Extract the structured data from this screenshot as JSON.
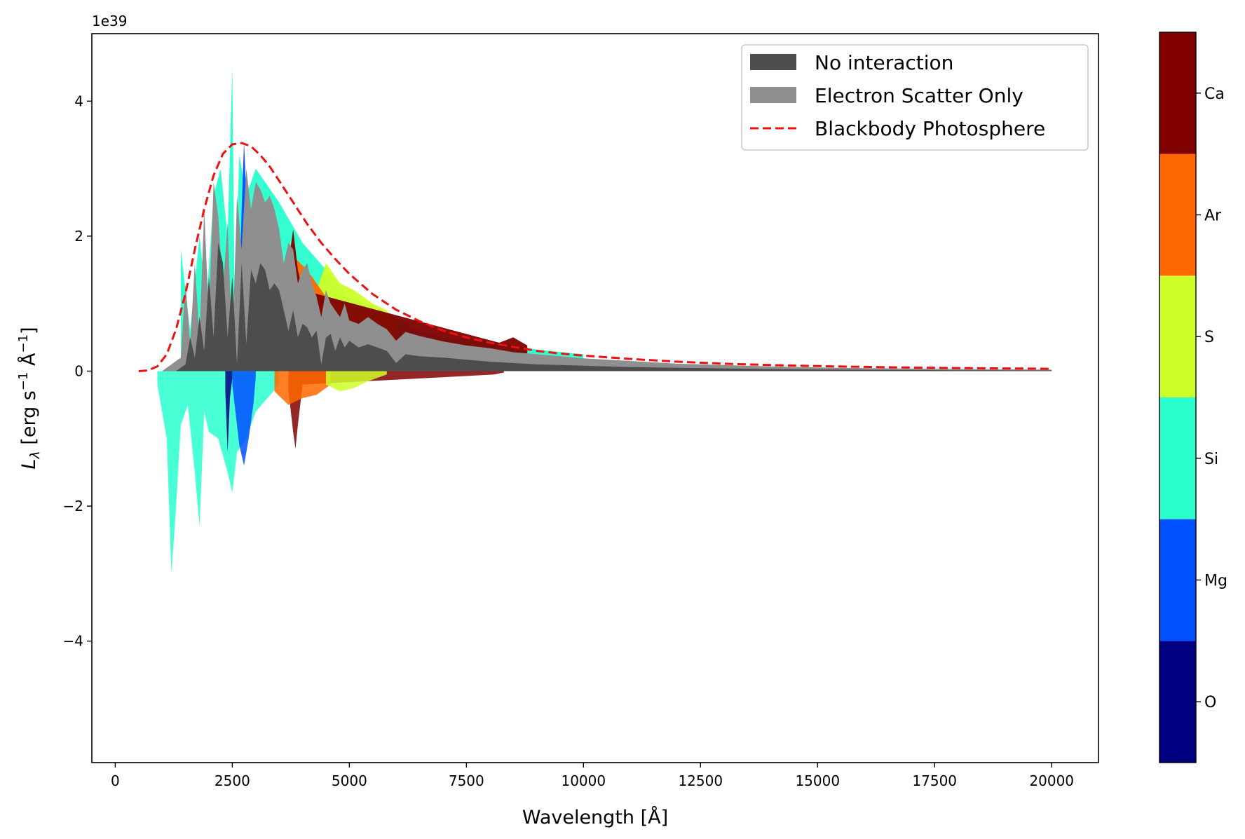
{
  "chart_data": {
    "type": "area",
    "title": "",
    "xlabel": "Wavelength [Å]",
    "ylabel": "L_λ [erg s⁻¹ Å⁻¹]",
    "ylabel_parts": {
      "l": "L",
      "sub": "λ",
      "rest1": " [erg s",
      "sup1": "−1",
      "mid": " Å",
      "sup2": "−1",
      "end": "]"
    },
    "y_offset_label": "1e39",
    "xlim": [
      -500,
      21000
    ],
    "ylim": [
      -5.8,
      5.0
    ],
    "x_ticks": [
      0,
      2500,
      5000,
      7500,
      10000,
      12500,
      15000,
      17500,
      20000
    ],
    "y_ticks": [
      -4,
      -2,
      0,
      2,
      4
    ],
    "y_tick_labels": [
      "−4",
      "−2",
      "0",
      "2",
      "4"
    ],
    "legend": {
      "position": "top-right",
      "entries": [
        {
          "label": "No interaction",
          "color": "#4d4d4d",
          "kind": "patch"
        },
        {
          "label": "Electron Scatter Only",
          "color": "#8f8f8f",
          "kind": "patch"
        },
        {
          "label": "Blackbody Photosphere",
          "color": "#ee1111",
          "kind": "dashed-line"
        }
      ]
    },
    "blackbody_photosphere": {
      "x": [
        500,
        700,
        900,
        1100,
        1300,
        1500,
        1700,
        1900,
        2100,
        2300,
        2500,
        2700,
        2900,
        3100,
        3300,
        3500,
        3800,
        4100,
        4400,
        4700,
        5000,
        5500,
        6000,
        6500,
        7000,
        7500,
        8000,
        8500,
        9000,
        9500,
        10000,
        11000,
        12000,
        13000,
        14000,
        15000,
        16000,
        17000,
        18000,
        19000,
        20000
      ],
      "y": [
        0.0,
        0.01,
        0.07,
        0.25,
        0.62,
        1.15,
        1.8,
        2.4,
        2.9,
        3.22,
        3.36,
        3.38,
        3.33,
        3.2,
        3.03,
        2.82,
        2.5,
        2.18,
        1.9,
        1.66,
        1.44,
        1.14,
        0.91,
        0.74,
        0.6,
        0.5,
        0.42,
        0.36,
        0.3,
        0.26,
        0.23,
        0.18,
        0.14,
        0.11,
        0.09,
        0.075,
        0.063,
        0.053,
        0.046,
        0.04,
        0.035
      ]
    },
    "electron_scatter_only": {
      "x": [
        1000,
        1400,
        1500,
        1600,
        1700,
        1800,
        1900,
        2000,
        2100,
        2200,
        2300,
        2400,
        2500,
        2600,
        2700,
        2800,
        2900,
        3000,
        3100,
        3200,
        3300,
        3400,
        3500,
        3600,
        3700,
        3800,
        3900,
        4000,
        4100,
        4200,
        4300,
        4400,
        4500,
        4600,
        4700,
        4800,
        4900,
        5000,
        5200,
        5400,
        5600,
        5800,
        6000,
        6200,
        6500,
        7000,
        7500,
        8000,
        8500,
        9000,
        9500,
        10000,
        11000,
        12000,
        13000,
        14000,
        15000,
        16000,
        17000,
        18000,
        19000,
        20000
      ],
      "y": [
        0.0,
        0.2,
        1.3,
        0.4,
        1.6,
        0.5,
        2.4,
        0.8,
        2.8,
        2.3,
        1.2,
        2.2,
        0.3,
        2.6,
        1.8,
        3.0,
        2.4,
        2.8,
        2.7,
        2.5,
        2.6,
        2.4,
        2.1,
        1.6,
        1.9,
        1.8,
        1.3,
        1.5,
        1.6,
        1.3,
        1.1,
        0.8,
        1.2,
        1.0,
        0.9,
        0.8,
        1.0,
        0.75,
        0.7,
        0.8,
        0.7,
        0.62,
        0.45,
        0.58,
        0.52,
        0.44,
        0.38,
        0.34,
        0.28,
        0.25,
        0.22,
        0.19,
        0.15,
        0.11,
        0.09,
        0.07,
        0.055,
        0.045,
        0.037,
        0.031,
        0.026,
        0.022
      ]
    },
    "no_interaction": {
      "x": [
        1300,
        1500,
        1600,
        1700,
        1800,
        1900,
        2000,
        2100,
        2200,
        2300,
        2400,
        2500,
        2600,
        2700,
        2800,
        2900,
        3000,
        3100,
        3200,
        3300,
        3400,
        3500,
        3600,
        3700,
        3800,
        3900,
        4000,
        4100,
        4200,
        4300,
        4400,
        4500,
        4600,
        4700,
        4800,
        4900,
        5000,
        5200,
        5400,
        5600,
        5800,
        6000,
        6200,
        6500,
        7000,
        7500,
        8000,
        8500,
        9000,
        9500,
        10000,
        11000,
        12000,
        13000,
        14000,
        15000,
        16000,
        17000,
        18000,
        19000,
        20000
      ],
      "y": [
        0.0,
        0.1,
        0.5,
        0.2,
        0.8,
        0.3,
        1.4,
        0.5,
        1.9,
        1.6,
        0.5,
        1.4,
        0.1,
        1.6,
        0.4,
        1.5,
        1.3,
        1.6,
        1.5,
        1.2,
        1.3,
        1.2,
        0.9,
        0.6,
        0.9,
        0.5,
        0.7,
        0.65,
        0.5,
        0.6,
        0.1,
        0.5,
        0.55,
        0.3,
        0.5,
        0.35,
        0.45,
        0.35,
        0.4,
        0.35,
        0.3,
        0.12,
        0.25,
        0.22,
        0.2,
        0.17,
        0.14,
        0.12,
        0.1,
        0.09,
        0.08,
        0.06,
        0.05,
        0.04,
        0.03,
        0.025,
        0.02,
        0.016,
        0.013,
        0.011,
        0.01
      ]
    },
    "elements": [
      {
        "name": "O",
        "color": "#000080"
      },
      {
        "name": "Mg",
        "color": "#0050ff"
      },
      {
        "name": "Si",
        "color": "#29ffce"
      },
      {
        "name": "S",
        "color": "#ceff29"
      },
      {
        "name": "Ar",
        "color": "#ff6800"
      },
      {
        "name": "Ca",
        "color": "#800000"
      }
    ],
    "emission_contributions": [
      {
        "element": "Si",
        "x": [
          1400,
          1600,
          1800,
          1950,
          2100,
          2250,
          2400,
          2500,
          2550,
          2650,
          2800,
          3000,
          3500,
          4000,
          4500,
          5000,
          5500,
          6000,
          6500,
          7000,
          8000,
          9000,
          10000
        ],
        "y": [
          1.8,
          0.6,
          2.0,
          1.0,
          2.6,
          3.0,
          2.0,
          4.5,
          1.0,
          3.2,
          2.6,
          3.0,
          2.5,
          1.9,
          1.5,
          1.1,
          0.95,
          0.8,
          0.6,
          0.5,
          0.45,
          0.32,
          0.25
        ]
      },
      {
        "element": "Mg",
        "x": [
          2500,
          2650,
          2700,
          2750,
          2800,
          2850,
          2900
        ],
        "y": [
          0.3,
          1.0,
          2.4,
          3.4,
          2.6,
          2.0,
          1.0
        ]
      },
      {
        "element": "S",
        "x": [
          4200,
          4500,
          4800,
          5100,
          5300,
          5500,
          5800,
          6000
        ],
        "y": [
          1.0,
          1.6,
          1.3,
          1.2,
          1.1,
          1.0,
          0.9,
          0.7
        ]
      },
      {
        "element": "Ar",
        "x": [
          3500,
          3800,
          4100,
          4400,
          4700
        ],
        "y": [
          1.5,
          1.7,
          1.5,
          1.2,
          0.9
        ]
      },
      {
        "element": "Ca",
        "x": [
          3700,
          3800,
          3900,
          4000,
          8200,
          8500,
          8800
        ],
        "y": [
          1.6,
          2.1,
          1.5,
          1.2,
          0.42,
          0.5,
          0.38
        ]
      }
    ],
    "absorption_contributions": [
      {
        "element": "Si",
        "x": [
          900,
          1100,
          1200,
          1300,
          1400,
          1550,
          1700,
          1800,
          1900,
          2000,
          2200,
          2400,
          2500,
          2600,
          2800,
          3000,
          3500
        ],
        "y": [
          -0.2,
          -1.0,
          -3.0,
          -2.0,
          -0.8,
          -0.5,
          -1.5,
          -2.3,
          -0.6,
          -0.9,
          -1.0,
          -1.5,
          -1.8,
          -1.2,
          -1.0,
          -0.6,
          -0.2
        ]
      },
      {
        "element": "O",
        "x": [
          2350,
          2400,
          2450,
          2500
        ],
        "y": [
          -0.3,
          -1.2,
          -0.4,
          -0.1
        ]
      },
      {
        "element": "Mg",
        "x": [
          2500,
          2650,
          2750,
          2850,
          2950,
          3000
        ],
        "y": [
          -0.2,
          -1.1,
          -1.4,
          -1.0,
          -0.5,
          -0.1
        ]
      },
      {
        "element": "Ca",
        "x": [
          3700,
          3800,
          3850,
          3900,
          4000,
          8100,
          8300
        ],
        "y": [
          -0.3,
          -0.9,
          -1.15,
          -0.8,
          -0.2,
          -0.05,
          -0.02
        ]
      },
      {
        "element": "Ar",
        "x": [
          3400,
          3700,
          4000,
          4300,
          4600
        ],
        "y": [
          -0.3,
          -0.5,
          -0.4,
          -0.35,
          -0.2
        ]
      },
      {
        "element": "S",
        "x": [
          4500,
          4800,
          5100,
          5400,
          5800
        ],
        "y": [
          -0.2,
          -0.3,
          -0.25,
          -0.15,
          -0.05
        ]
      }
    ]
  }
}
